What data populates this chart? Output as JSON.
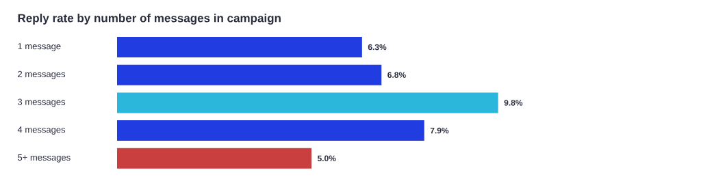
{
  "chart_data": {
    "type": "bar",
    "orientation": "horizontal",
    "title": "Reply rate by number of messages in campaign",
    "categories": [
      "1 message",
      "2 messages",
      "3 messages",
      "4 messages",
      "5+ messages"
    ],
    "values": [
      6.3,
      6.8,
      9.8,
      7.9,
      5.0
    ],
    "colors": [
      "#213ce0",
      "#213ce0",
      "#2bb6db",
      "#213ce0",
      "#c93e3e"
    ],
    "value_labels": [
      "6.3%",
      "6.8%",
      "9.8%",
      "7.9%",
      "5.0%"
    ]
  }
}
